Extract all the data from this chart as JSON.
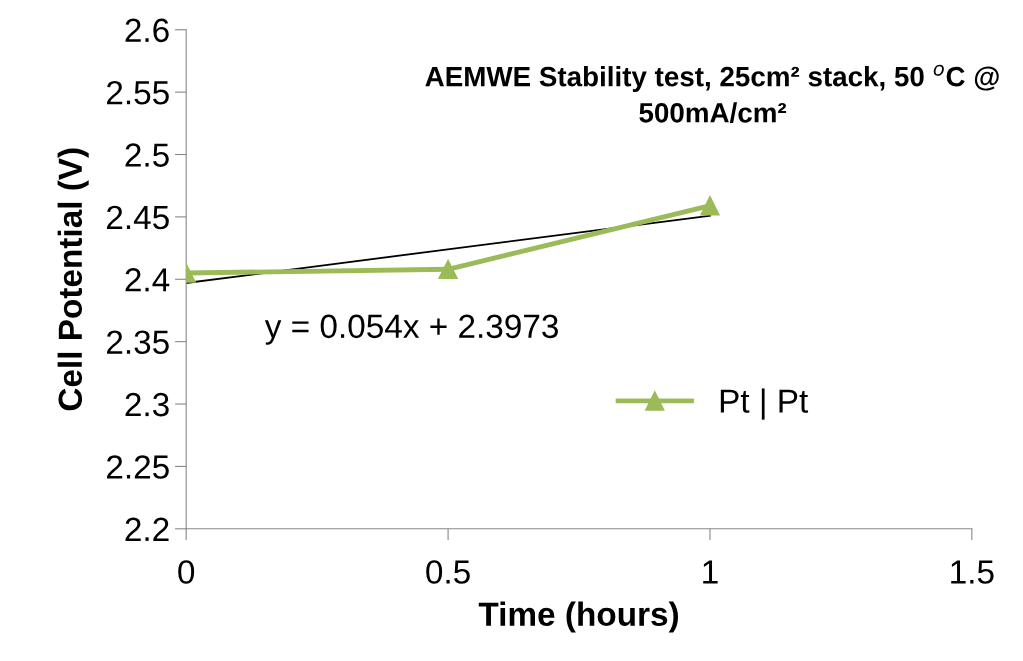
{
  "chart_data": {
    "type": "line",
    "title": "AEMWE Stability test, 25cm² stack, 50 $^{o}$C @ 500mA/cm²",
    "xlabel": "Time (hours)",
    "ylabel": "Cell Potential (V)",
    "x": [
      0,
      0.5,
      1
    ],
    "series": [
      {
        "name": "Pt | Pt",
        "color": "#9bbb59",
        "values": [
          2.405,
          2.408,
          2.459
        ],
        "marker": "triangle"
      },
      {
        "type": "line",
        "color": "#000000",
        "x": [
          0,
          1
        ],
        "values": [
          2.397,
          2.451
        ],
        "marker": "none"
      }
    ],
    "annotations": [
      "y = 0.054x + 2.3973"
    ],
    "xlim": [
      0,
      1.5
    ],
    "xticks": [
      0,
      0.5,
      1,
      1.5
    ],
    "ylim": [
      2.2,
      2.6
    ],
    "yticks": [
      2.2,
      2.25,
      2.3,
      2.35,
      2.4,
      2.45,
      2.5,
      2.55,
      2.6
    ],
    "grid": false,
    "legend": "right"
  }
}
